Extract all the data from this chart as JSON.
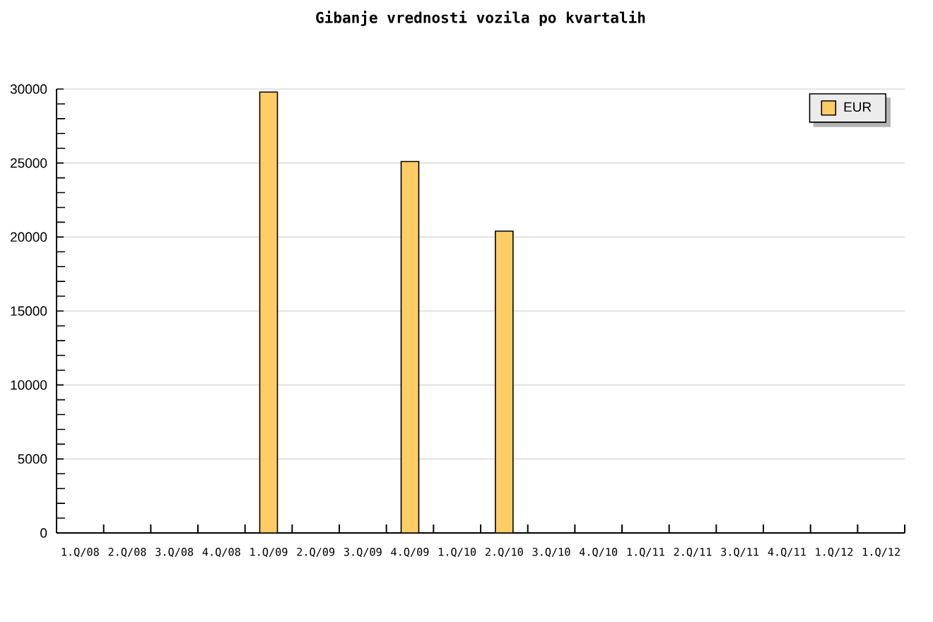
{
  "chart_data": {
    "type": "bar",
    "title": "Gibanje vrednosti vozila po kvartalih",
    "categories": [
      "1.Q/08",
      "2.Q/08",
      "3.Q/08",
      "4.Q/08",
      "1.Q/09",
      "2.Q/09",
      "3.Q/09",
      "4.Q/09",
      "1.Q/10",
      "2.Q/10",
      "3.Q/10",
      "4.Q/10",
      "1.Q/11",
      "2.Q/11",
      "3.Q/11",
      "4.Q/11",
      "1.Q/12",
      "1.Q/12"
    ],
    "series": [
      {
        "name": "EUR",
        "color": "#ffcc66",
        "values": [
          null,
          null,
          null,
          null,
          29800,
          null,
          null,
          25100,
          null,
          20400,
          null,
          null,
          null,
          null,
          null,
          null,
          null,
          null
        ]
      }
    ],
    "ylim": [
      0,
      30000
    ],
    "yticks": [
      0,
      5000,
      10000,
      15000,
      20000,
      25000,
      30000
    ],
    "grid": "y",
    "legend": "top right"
  }
}
